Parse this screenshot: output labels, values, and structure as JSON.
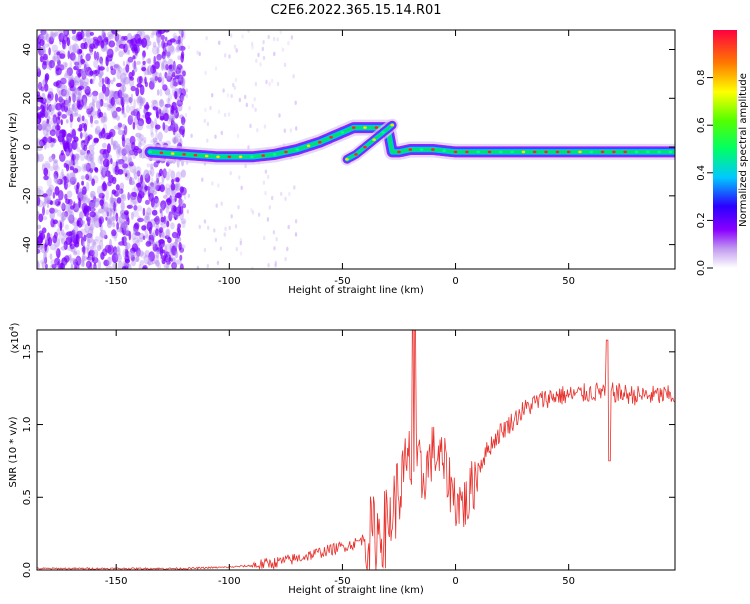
{
  "title": "C2E6.2022.365.15.14.R01",
  "chart_data": [
    {
      "type": "heatmap",
      "xlabel": "Height of straight line (km)",
      "ylabel": "Frequency (Hz)",
      "xlim": [
        -185,
        97
      ],
      "ylim": [
        -50,
        48
      ],
      "xticks": [
        -150,
        -100,
        -50,
        0,
        50
      ],
      "yticks": [
        40,
        20,
        0,
        -20,
        -40
      ],
      "colorbar": {
        "label": "Normalized spectral amplitude",
        "range": [
          0,
          1
        ],
        "ticks": [
          0.0,
          0.2,
          0.4,
          0.6,
          0.8
        ]
      },
      "ridge": {
        "x": [
          -135,
          -120,
          -105,
          -90,
          -80,
          -70,
          -60,
          -50,
          -45,
          -40,
          -35,
          -30,
          -28,
          -25,
          -20,
          -15,
          -10,
          0,
          20,
          50,
          80,
          97
        ],
        "freq": [
          -2,
          -3,
          -4,
          -4,
          -3,
          -1,
          2,
          6,
          8,
          8,
          8,
          8,
          -2,
          -2,
          -1,
          -1,
          -1,
          -2,
          -2,
          -2,
          -2,
          -2
        ]
      },
      "secondary_ridge": {
        "x": [
          -48,
          -44,
          -40,
          -36,
          -32,
          -28
        ],
        "freq": [
          -5,
          -3,
          0,
          3,
          6,
          9
        ]
      }
    },
    {
      "type": "line",
      "xlabel": "Height of straight line (km)",
      "ylabel": "SNR (10 * v/v)",
      "exponent_label": "(x10",
      "exponent_power": "4",
      "exponent_close": ")",
      "xlim": [
        -185,
        97
      ],
      "ylim": [
        0,
        1.65
      ],
      "xticks": [
        -150,
        -100,
        -50,
        0,
        50
      ],
      "yticks": [
        0.0,
        0.5,
        1.0,
        1.5
      ],
      "yticklabels": [
        "0.0",
        "0.5",
        "1.0",
        "1.5"
      ],
      "series": [
        {
          "name": "SNR",
          "color": "#e8322d",
          "x": [
            -185,
            -160,
            -140,
            -120,
            -100,
            -90,
            -80,
            -70,
            -60,
            -50,
            -45,
            -40,
            -35,
            -30,
            -25,
            -20,
            -15,
            -10,
            -5,
            0,
            5,
            10,
            15,
            20,
            25,
            30,
            35,
            40,
            45,
            50,
            55,
            60,
            65,
            70,
            80,
            90,
            97
          ],
          "y": [
            0.01,
            0.01,
            0.01,
            0.01,
            0.02,
            0.03,
            0.05,
            0.08,
            0.12,
            0.16,
            0.18,
            0.22,
            0.25,
            0.3,
            0.55,
            0.75,
            0.6,
            0.82,
            0.72,
            0.48,
            0.45,
            0.7,
            0.85,
            0.95,
            1.02,
            1.1,
            1.15,
            1.18,
            1.2,
            1.2,
            1.21,
            1.22,
            1.23,
            1.22,
            1.2,
            1.2,
            1.2
          ]
        }
      ]
    }
  ],
  "colors": {
    "line": "#e8322d",
    "noise": "#7a00ff"
  }
}
